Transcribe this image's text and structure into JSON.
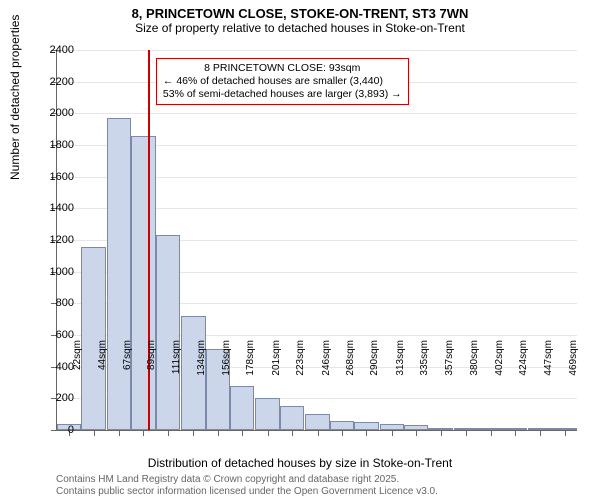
{
  "title": "8, PRINCETOWN CLOSE, STOKE-ON-TRENT, ST3 7WN",
  "subtitle": "Size of property relative to detached houses in Stoke-on-Trent",
  "yaxis": {
    "title": "Number of detached properties",
    "min": 0,
    "max": 2400,
    "step": 200,
    "ticks": [
      0,
      200,
      400,
      600,
      800,
      1000,
      1200,
      1400,
      1600,
      1800,
      2000,
      2200,
      2400
    ]
  },
  "xaxis": {
    "title": "Distribution of detached houses by size in Stoke-on-Trent"
  },
  "chart": {
    "type": "histogram",
    "bar_fill": "#cbd6ea",
    "bar_stroke": "#7a8aa8",
    "grid_color": "#e6e6e6",
    "background": "#ffffff",
    "marker_color": "#cc0000",
    "marker_x_value": 93,
    "categories": [
      "22sqm",
      "44sqm",
      "67sqm",
      "89sqm",
      "111sqm",
      "134sqm",
      "156sqm",
      "178sqm",
      "201sqm",
      "223sqm",
      "246sqm",
      "268sqm",
      "290sqm",
      "313sqm",
      "335sqm",
      "357sqm",
      "380sqm",
      "402sqm",
      "424sqm",
      "447sqm",
      "469sqm"
    ],
    "x_numeric": [
      22,
      44,
      67,
      89,
      111,
      134,
      156,
      178,
      201,
      223,
      246,
      268,
      290,
      313,
      335,
      357,
      380,
      402,
      424,
      447,
      469
    ],
    "values": [
      40,
      1155,
      1970,
      1860,
      1230,
      720,
      510,
      280,
      200,
      150,
      100,
      60,
      50,
      40,
      30,
      10,
      5,
      5,
      5,
      5,
      5
    ]
  },
  "annotation": {
    "line1": "8 PRINCETOWN CLOSE: 93sqm",
    "line2": "← 46% of detached houses are smaller (3,440)",
    "line3": "53% of semi-detached houses are larger (3,893) →"
  },
  "footer": {
    "line1": "Contains HM Land Registry data © Crown copyright and database right 2025.",
    "line2": "Contains public sector information licensed under the Open Government Licence v3.0."
  }
}
